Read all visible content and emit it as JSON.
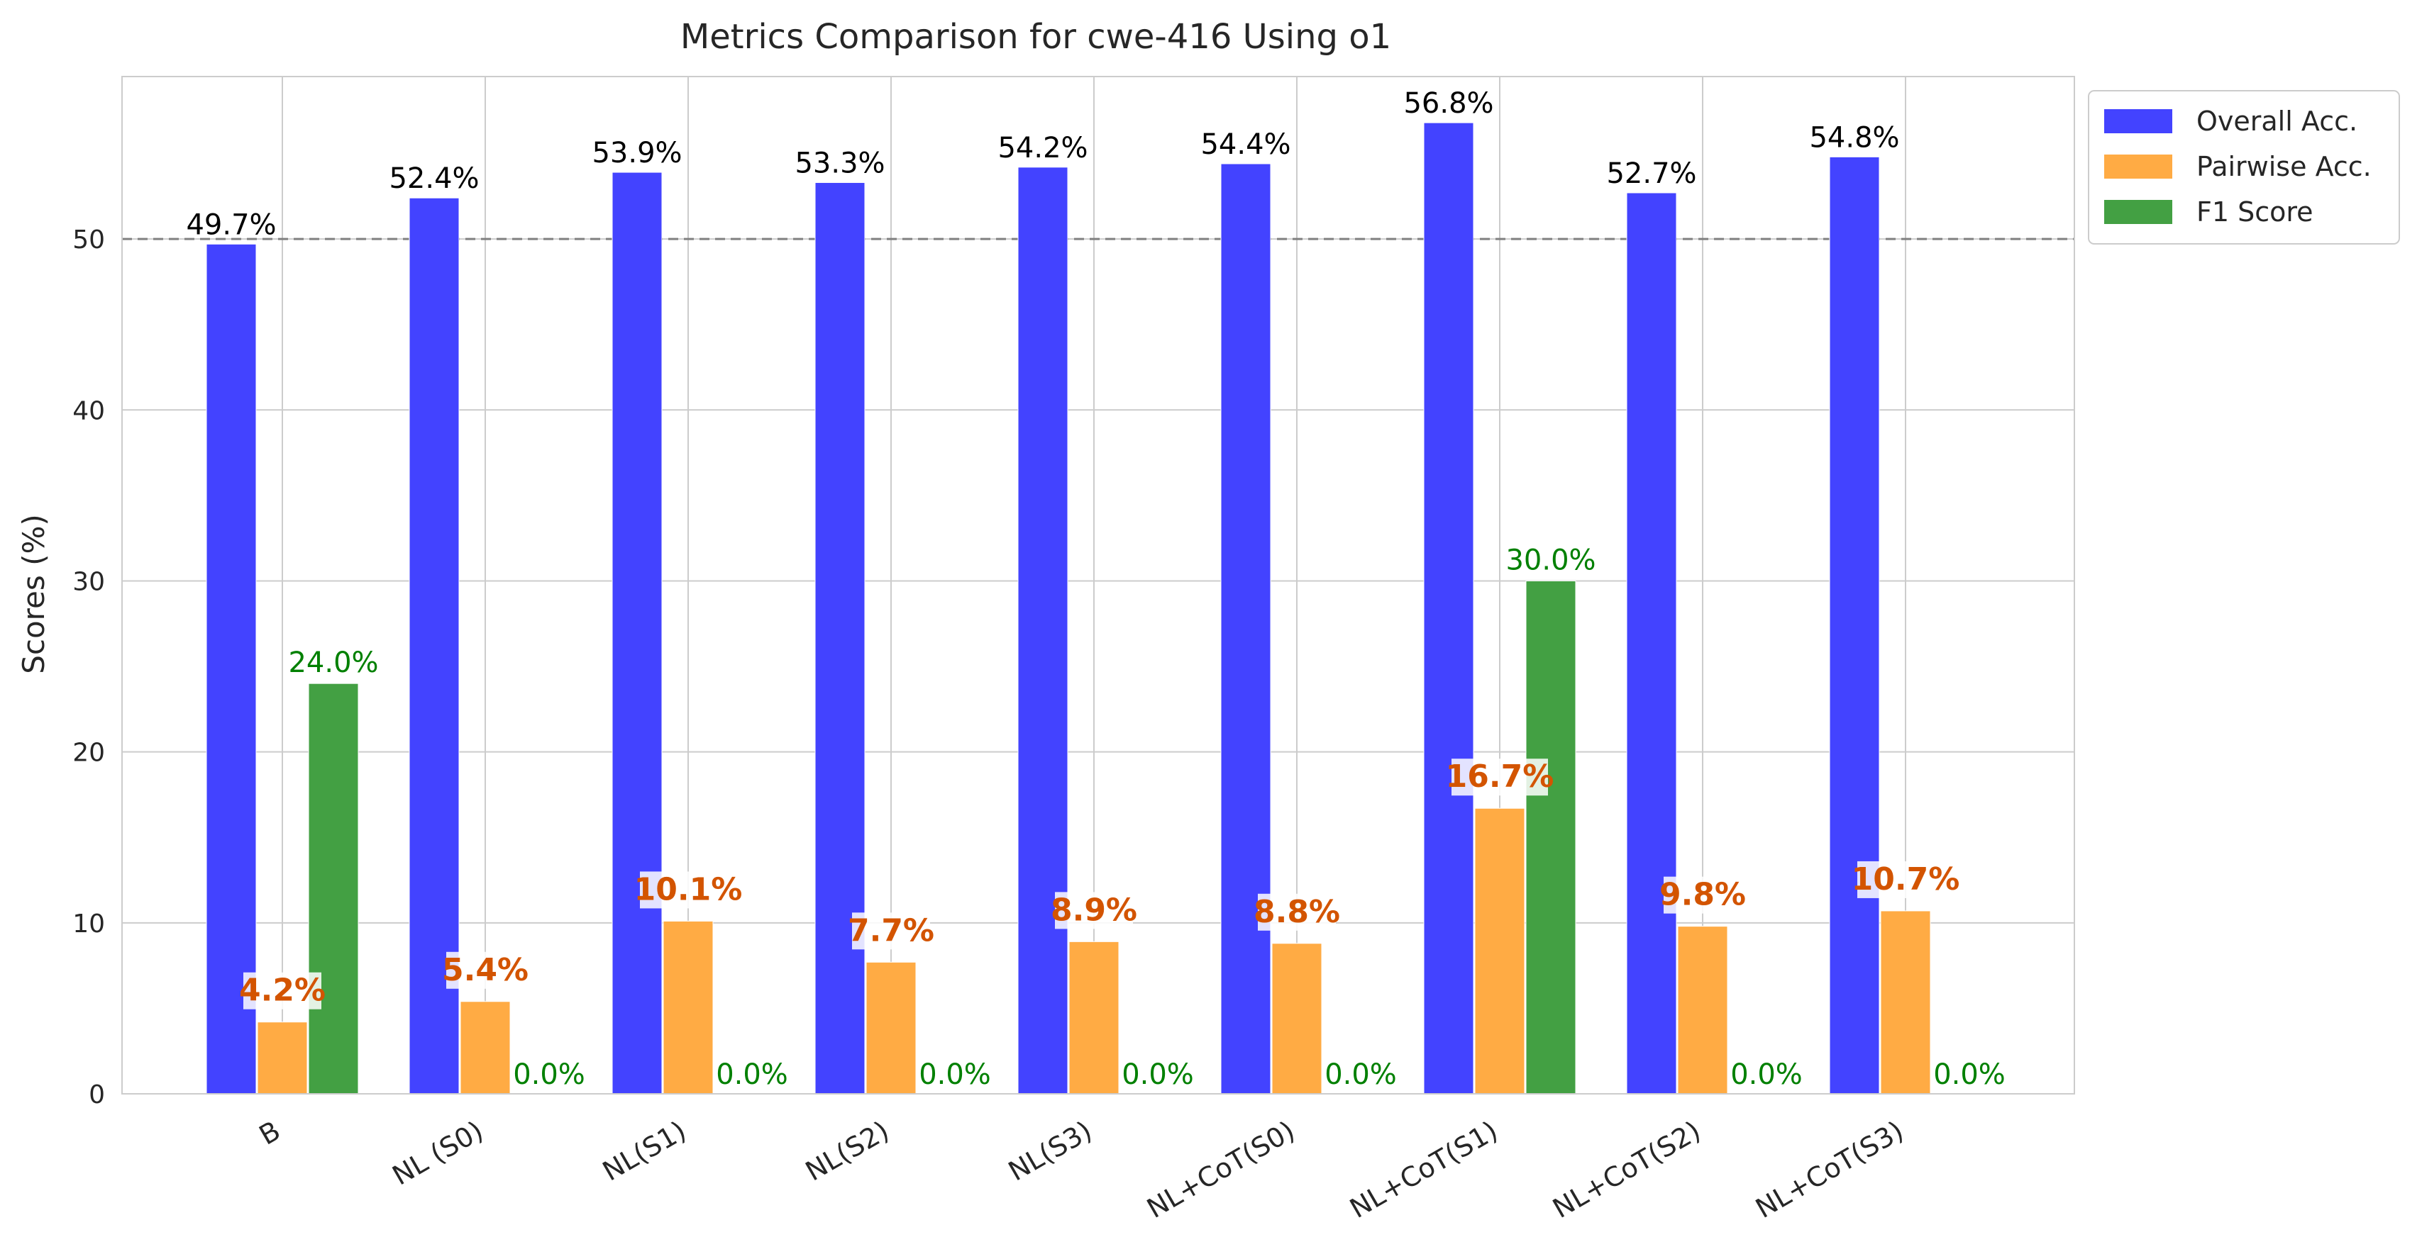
{
  "chart_data": {
    "type": "bar",
    "title": "Metrics Comparison for cwe-416 Using o1",
    "xlabel": "",
    "ylabel": "Scores (%)",
    "ylim": [
      0,
      59.5
    ],
    "yticks": [
      0,
      10,
      20,
      30,
      40,
      50
    ],
    "grid": true,
    "reference_line": 50,
    "legend_position": "outside-top-right",
    "categories": [
      "B",
      "NL (S0)",
      "NL(S1)",
      "NL(S2)",
      "NL(S3)",
      "NL+CoT(S0)",
      "NL+CoT(S1)",
      "NL+CoT(S2)",
      "NL+CoT(S3)"
    ],
    "series": [
      {
        "name": "Overall Acc.",
        "color": "#4343ff",
        "values": [
          49.7,
          52.4,
          53.9,
          53.3,
          54.2,
          54.4,
          56.8,
          52.7,
          54.8
        ],
        "labels": [
          "49.7%",
          "52.4%",
          "53.9%",
          "53.3%",
          "54.2%",
          "54.4%",
          "56.8%",
          "52.7%",
          "54.8%"
        ]
      },
      {
        "name": "Pairwise Acc.",
        "color": "#ffab44",
        "values": [
          4.2,
          5.4,
          10.1,
          7.7,
          8.9,
          8.8,
          16.7,
          9.8,
          10.7
        ],
        "labels": [
          "4.2%",
          "5.4%",
          "10.1%",
          "7.7%",
          "8.9%",
          "8.8%",
          "16.7%",
          "9.8%",
          "10.7%"
        ]
      },
      {
        "name": "F1 Score",
        "color": "#43a043",
        "values": [
          24.0,
          0.0,
          0.0,
          0.0,
          0.0,
          0.0,
          30.0,
          0.0,
          0.0
        ],
        "labels": [
          "24.0%",
          "0.0%",
          "0.0%",
          "0.0%",
          "0.0%",
          "0.0%",
          "30.0%",
          "0.0%",
          "0.0%"
        ]
      }
    ]
  }
}
